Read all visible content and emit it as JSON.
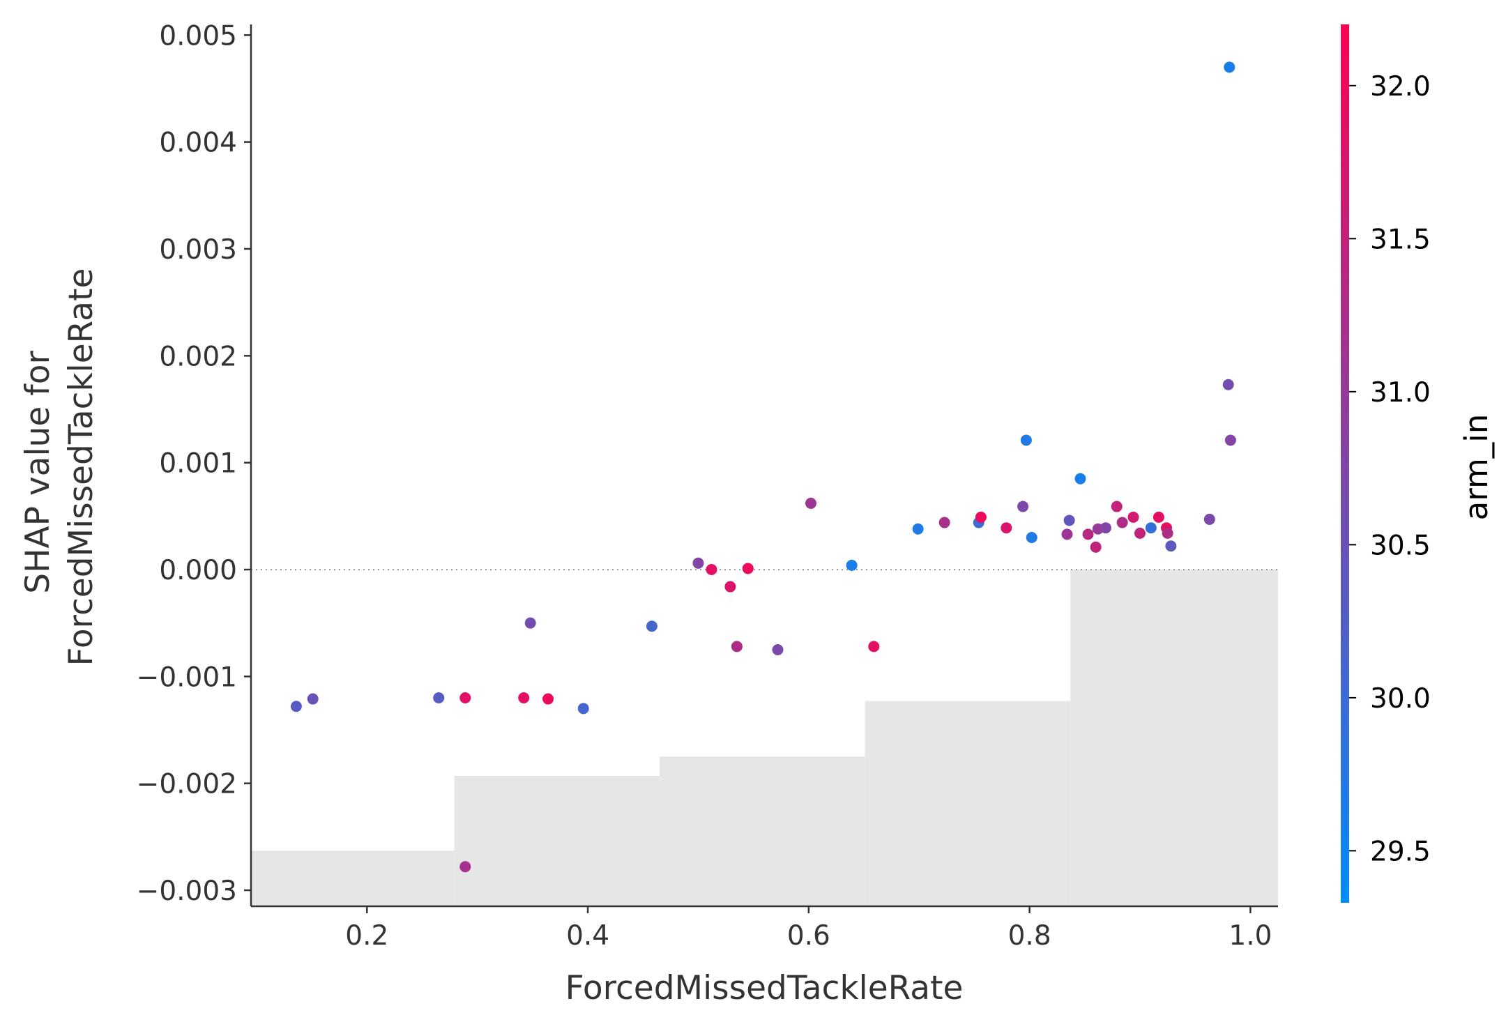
{
  "chart_data": {
    "type": "scatter",
    "xlabel": "ForcedMissedTackleRate",
    "ylabel": [
      "SHAP value for",
      "ForcedMissedTackleRate"
    ],
    "xlim": [
      0.095,
      1.025
    ],
    "ylim": [
      -0.00315,
      0.0051
    ],
    "x_ticks": [
      0.2,
      0.4,
      0.6,
      0.8,
      1.0
    ],
    "x_tick_labels": [
      "0.2",
      "0.4",
      "0.6",
      "0.8",
      "1.0"
    ],
    "y_ticks": [
      -0.003,
      -0.002,
      -0.001,
      0.0,
      0.001,
      0.002,
      0.003,
      0.004,
      0.005
    ],
    "y_tick_labels": [
      "−0.003",
      "−0.002",
      "−0.001",
      "0.000",
      "0.001",
      "0.002",
      "0.003",
      "0.004",
      "0.005"
    ],
    "zero_line": true,
    "grid": false,
    "colorbar": {
      "label": "arm_in",
      "range": [
        29.33,
        32.2
      ],
      "ticks": [
        29.5,
        30.0,
        30.5,
        31.0,
        31.5,
        32.0
      ],
      "tick_labels": [
        "29.5",
        "30.0",
        "30.5",
        "31.0",
        "31.5",
        "32.0"
      ],
      "colors": [
        "#008bfb",
        "#ff0051"
      ]
    },
    "histogram": {
      "color": "#e6e6e6",
      "bins": [
        {
          "x0": 0.095,
          "x1": 0.279,
          "top": -0.00263
        },
        {
          "x0": 0.279,
          "x1": 0.465,
          "top": -0.00193
        },
        {
          "x0": 0.465,
          "x1": 0.651,
          "top": -0.00175
        },
        {
          "x0": 0.651,
          "x1": 0.837,
          "top": -0.00123
        },
        {
          "x0": 0.837,
          "x1": 1.025,
          "top": 0.0
        }
      ]
    },
    "points": [
      {
        "x": 0.136,
        "y": -0.00128,
        "c": 30.3
      },
      {
        "x": 0.151,
        "y": -0.00121,
        "c": 30.5
      },
      {
        "x": 0.265,
        "y": -0.0012,
        "c": 30.3
      },
      {
        "x": 0.289,
        "y": -0.0012,
        "c": 31.9
      },
      {
        "x": 0.289,
        "y": -0.00278,
        "c": 31.2
      },
      {
        "x": 0.342,
        "y": -0.0012,
        "c": 31.9
      },
      {
        "x": 0.364,
        "y": -0.00121,
        "c": 32.0
      },
      {
        "x": 0.348,
        "y": -0.0005,
        "c": 30.6
      },
      {
        "x": 0.396,
        "y": -0.0013,
        "c": 30.1
      },
      {
        "x": 0.458,
        "y": -0.00053,
        "c": 30.1
      },
      {
        "x": 0.5,
        "y": 6e-05,
        "c": 30.8
      },
      {
        "x": 0.512,
        "y": 0.0,
        "c": 31.9
      },
      {
        "x": 0.529,
        "y": -0.00016,
        "c": 31.8
      },
      {
        "x": 0.545,
        "y": 1e-05,
        "c": 32.0
      },
      {
        "x": 0.535,
        "y": -0.00072,
        "c": 31.3
      },
      {
        "x": 0.572,
        "y": -0.00075,
        "c": 30.7
      },
      {
        "x": 0.602,
        "y": 0.00062,
        "c": 31.1
      },
      {
        "x": 0.639,
        "y": 4e-05,
        "c": 29.6
      },
      {
        "x": 0.659,
        "y": -0.00072,
        "c": 31.9
      },
      {
        "x": 0.699,
        "y": 0.00038,
        "c": 29.7
      },
      {
        "x": 0.723,
        "y": 0.00044,
        "c": 31.2
      },
      {
        "x": 0.754,
        "y": 0.00044,
        "c": 30.0
      },
      {
        "x": 0.756,
        "y": 0.00049,
        "c": 32.0
      },
      {
        "x": 0.779,
        "y": 0.00039,
        "c": 31.8
      },
      {
        "x": 0.794,
        "y": 0.00059,
        "c": 30.7
      },
      {
        "x": 0.797,
        "y": 0.00121,
        "c": 29.7
      },
      {
        "x": 0.802,
        "y": 0.0003,
        "c": 29.7
      },
      {
        "x": 0.834,
        "y": 0.00033,
        "c": 31.1
      },
      {
        "x": 0.836,
        "y": 0.00046,
        "c": 30.4
      },
      {
        "x": 0.846,
        "y": 0.00085,
        "c": 29.6
      },
      {
        "x": 0.853,
        "y": 0.00033,
        "c": 31.4
      },
      {
        "x": 0.86,
        "y": 0.00021,
        "c": 31.5
      },
      {
        "x": 0.862,
        "y": 0.00038,
        "c": 31.0
      },
      {
        "x": 0.869,
        "y": 0.00039,
        "c": 30.8
      },
      {
        "x": 0.879,
        "y": 0.00059,
        "c": 31.5
      },
      {
        "x": 0.884,
        "y": 0.00044,
        "c": 31.3
      },
      {
        "x": 0.894,
        "y": 0.00049,
        "c": 31.7
      },
      {
        "x": 0.9,
        "y": 0.00034,
        "c": 31.5
      },
      {
        "x": 0.91,
        "y": 0.00039,
        "c": 29.9
      },
      {
        "x": 0.917,
        "y": 0.00049,
        "c": 31.9
      },
      {
        "x": 0.924,
        "y": 0.00039,
        "c": 31.9
      },
      {
        "x": 0.925,
        "y": 0.00034,
        "c": 31.3
      },
      {
        "x": 0.928,
        "y": 0.00022,
        "c": 30.4
      },
      {
        "x": 0.963,
        "y": 0.00047,
        "c": 30.7
      },
      {
        "x": 0.98,
        "y": 0.00173,
        "c": 30.6
      },
      {
        "x": 0.981,
        "y": 0.0047,
        "c": 29.6
      },
      {
        "x": 0.982,
        "y": 0.00121,
        "c": 30.8
      }
    ]
  }
}
